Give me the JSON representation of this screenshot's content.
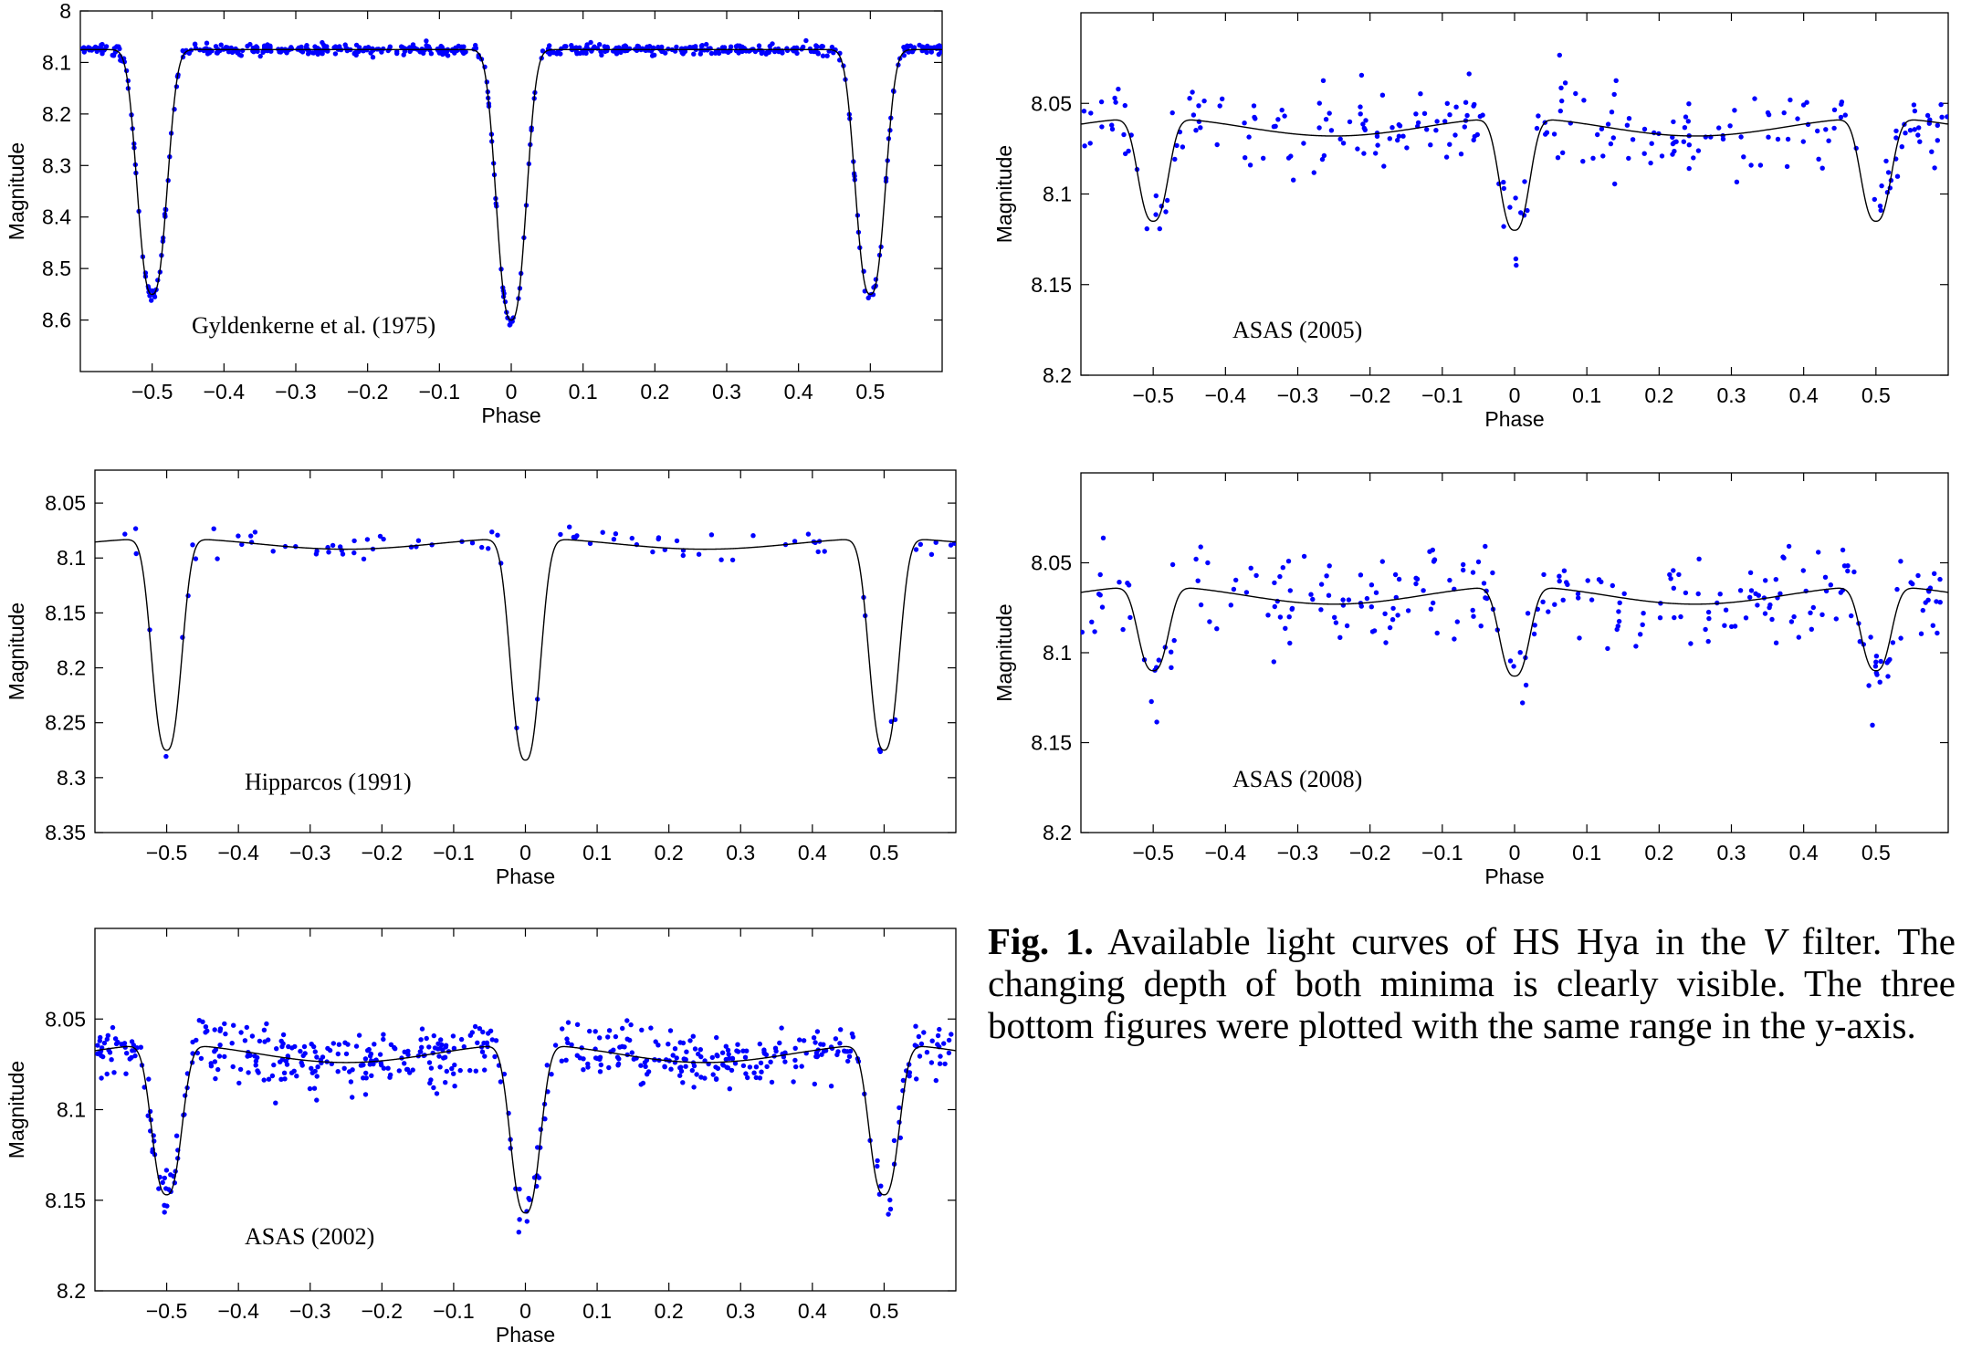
{
  "chart_data": [
    {
      "type": "scatter",
      "annotation": "Gyldenkerne et al. (1975)",
      "xlabel": "Phase",
      "ylabel": "Magnitude",
      "xlim": [
        -0.6,
        0.6
      ],
      "ylim": [
        8.0,
        8.7
      ],
      "y_inverted": true,
      "xticks": [
        -0.5,
        -0.4,
        -0.3,
        -0.2,
        -0.1,
        0,
        0.1,
        0.2,
        0.3,
        0.4,
        0.5
      ],
      "xtick_labels": [
        "−0.5",
        "−0.4",
        "−0.3",
        "−0.2",
        "−0.1",
        "0",
        "0.1",
        "0.2",
        "0.3",
        "0.4",
        "0.5"
      ],
      "yticks": [
        8,
        8.1,
        8.2,
        8.3,
        8.4,
        8.5,
        8.6
      ],
      "ytick_labels": [
        "8",
        "8.1",
        "8.2",
        "8.3",
        "8.4",
        "8.5",
        "8.6"
      ],
      "model": {
        "base": 8.075,
        "primary_depth": 0.525,
        "secondary_depth": 0.475,
        "amplitude": 0,
        "width": 0.026
      },
      "observations": {
        "n": 620,
        "scatter": 0.005
      },
      "point_color": "#0000ff",
      "line_color": "#000000"
    },
    {
      "type": "scatter",
      "annotation": "ASAS (2005)",
      "xlabel": "Phase",
      "ylabel": "Magnitude",
      "xlim": [
        -0.6,
        0.6
      ],
      "ylim": [
        8.0,
        8.2
      ],
      "y_inverted": true,
      "xticks": [
        -0.5,
        -0.4,
        -0.3,
        -0.2,
        -0.1,
        0,
        0.1,
        0.2,
        0.3,
        0.4,
        0.5
      ],
      "xtick_labels": [
        "−0.5",
        "−0.4",
        "−0.3",
        "−0.2",
        "−0.1",
        "0",
        "0.1",
        "0.2",
        "0.3",
        "0.4",
        "0.5"
      ],
      "yticks": [
        8.05,
        8.1,
        8.15,
        8.2
      ],
      "ytick_labels": [
        "8.05",
        "8.1",
        "8.15",
        "8.2"
      ],
      "model": {
        "base": 8.063,
        "primary_depth": 0.062,
        "secondary_depth": 0.057,
        "amplitude": 0.005,
        "width": 0.026
      },
      "observations": {
        "n": 260,
        "scatter": 0.012
      },
      "point_color": "#0000ff",
      "line_color": "#000000"
    },
    {
      "type": "scatter",
      "annotation": "Hipparcos (1991)",
      "xlabel": "Phase",
      "ylabel": "Magnitude",
      "xlim": [
        -0.6,
        0.6
      ],
      "ylim": [
        8.02,
        8.35
      ],
      "y_inverted": true,
      "xticks": [
        -0.5,
        -0.4,
        -0.3,
        -0.2,
        -0.1,
        0,
        0.1,
        0.2,
        0.3,
        0.4,
        0.5
      ],
      "xtick_labels": [
        "−0.5",
        "−0.4",
        "−0.3",
        "−0.2",
        "−0.1",
        "0",
        "0.1",
        "0.2",
        "0.3",
        "0.4",
        "0.5"
      ],
      "yticks": [
        8.05,
        8.1,
        8.15,
        8.2,
        8.25,
        8.3,
        8.35
      ],
      "ytick_labels": [
        "8.05",
        "8.1",
        "8.15",
        "8.2",
        "8.25",
        "8.3",
        "8.35"
      ],
      "model": {
        "base": 8.087,
        "primary_depth": 0.202,
        "secondary_depth": 0.193,
        "amplitude": 0.005,
        "width": 0.026
      },
      "observations": {
        "n": 90,
        "scatter": 0.007
      },
      "point_color": "#0000ff",
      "line_color": "#000000"
    },
    {
      "type": "scatter",
      "annotation": "ASAS (2008)",
      "xlabel": "Phase",
      "ylabel": "Magnitude",
      "xlim": [
        -0.6,
        0.6
      ],
      "ylim": [
        8.0,
        8.2
      ],
      "y_inverted": true,
      "xticks": [
        -0.5,
        -0.4,
        -0.3,
        -0.2,
        -0.1,
        0,
        0.1,
        0.2,
        0.3,
        0.4,
        0.5
      ],
      "xtick_labels": [
        "−0.5",
        "−0.4",
        "−0.3",
        "−0.2",
        "−0.1",
        "0",
        "0.1",
        "0.2",
        "0.3",
        "0.4",
        "0.5"
      ],
      "yticks": [
        8.05,
        8.1,
        8.15,
        8.2
      ],
      "ytick_labels": [
        "8.05",
        "8.1",
        "8.15",
        "8.2"
      ],
      "model": {
        "base": 8.068,
        "primary_depth": 0.05,
        "secondary_depth": 0.047,
        "amplitude": 0.005,
        "width": 0.026
      },
      "observations": {
        "n": 260,
        "scatter": 0.013
      },
      "point_color": "#0000ff",
      "line_color": "#000000"
    },
    {
      "type": "scatter",
      "annotation": "ASAS (2002)",
      "xlabel": "Phase",
      "ylabel": "Magnitude",
      "xlim": [
        -0.6,
        0.6
      ],
      "ylim": [
        8.0,
        8.2
      ],
      "y_inverted": true,
      "xticks": [
        -0.5,
        -0.4,
        -0.3,
        -0.2,
        -0.1,
        0,
        0.1,
        0.2,
        0.3,
        0.4,
        0.5
      ],
      "xtick_labels": [
        "−0.5",
        "−0.4",
        "−0.3",
        "−0.2",
        "−0.1",
        "0",
        "0.1",
        "0.2",
        "0.3",
        "0.4",
        "0.5"
      ],
      "yticks": [
        8.05,
        8.1,
        8.15,
        8.2
      ],
      "ytick_labels": [
        "8.05",
        "8.1",
        "8.15",
        "8.2"
      ],
      "model": {
        "base": 8.069,
        "primary_depth": 0.093,
        "secondary_depth": 0.083,
        "amplitude": 0.005,
        "width": 0.026
      },
      "observations": {
        "n": 560,
        "scatter": 0.008
      },
      "point_color": "#0000ff",
      "line_color": "#000000"
    }
  ],
  "caption": {
    "label": "Fig. 1.",
    "text_before": " Available light curves of HS Hya in the ",
    "filter": "V",
    "text_after": " filter. The changing depth of both minima is clearly visible. The three bottom figures were plotted with the same range in the y-axis."
  }
}
